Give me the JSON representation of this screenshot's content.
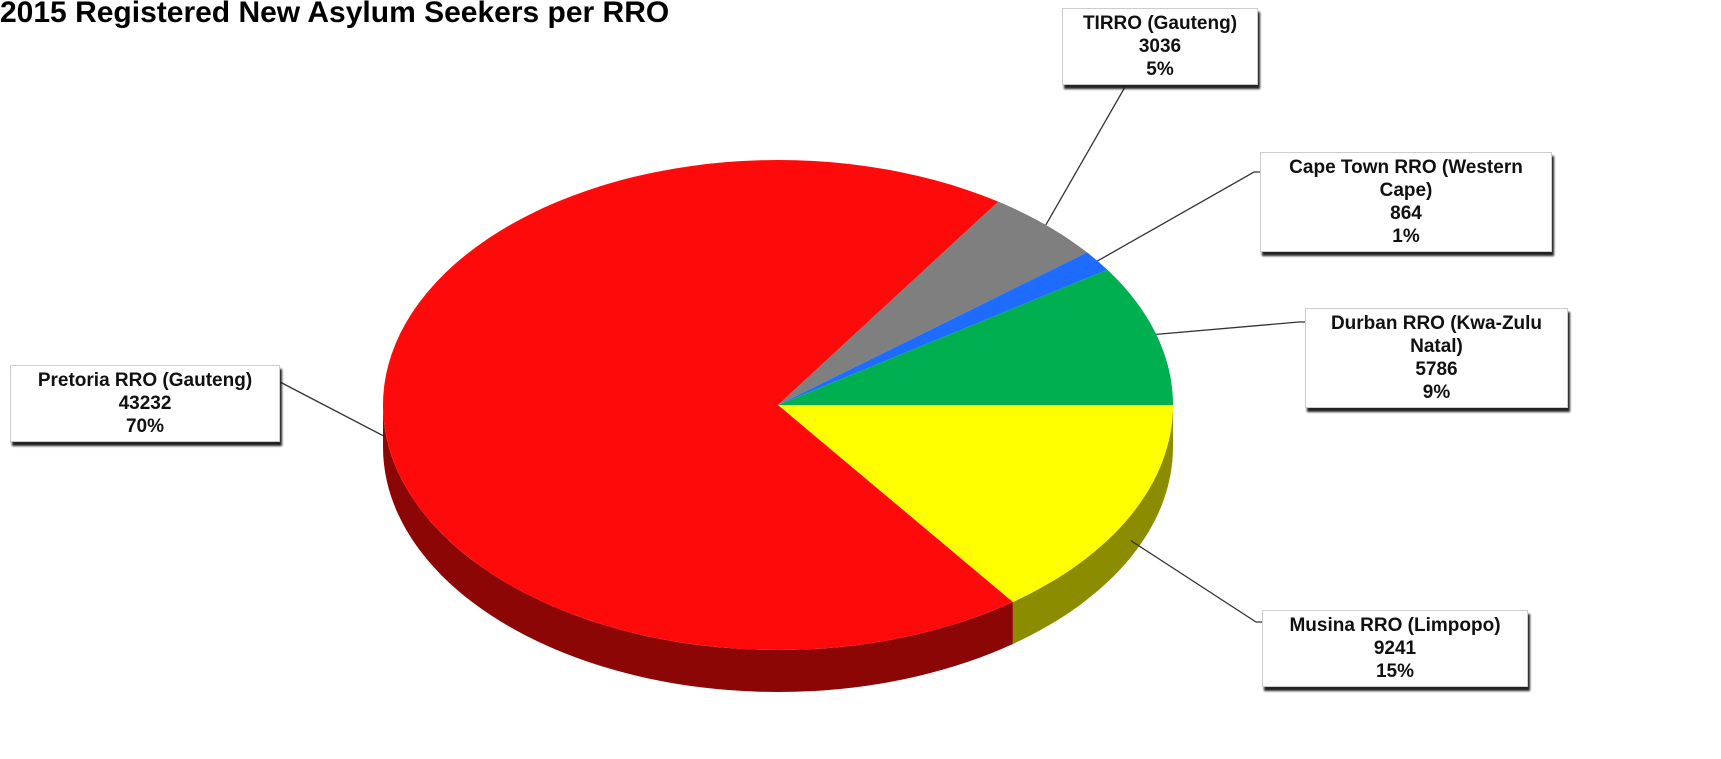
{
  "chart_data": {
    "type": "pie3d",
    "title": "2015 Registered New Asylum Seekers per RRO",
    "categories": [
      "Musina RRO (Limpopo)",
      "Pretoria RRO (Gauteng)",
      "TIRRO (Gauteng)",
      "Cape Town RRO (Western Cape)",
      "Durban RRO (Kwa-Zulu Natal)"
    ],
    "values": [
      9241,
      43232,
      3036,
      864,
      5786
    ],
    "percent_labels": [
      "15%",
      "70%",
      "5%",
      "1%",
      "9%"
    ],
    "colors": [
      "#ffff00",
      "#ff0a0a",
      "#7f7f7f",
      "#1e6cff",
      "#00b050"
    ]
  }
}
